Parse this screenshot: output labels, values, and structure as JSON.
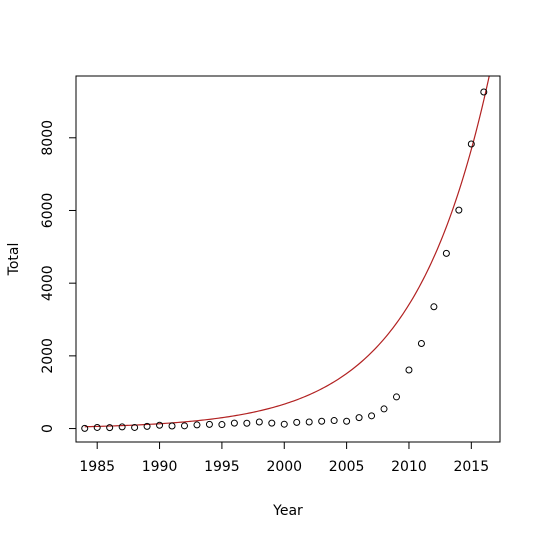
{
  "chart_data": {
    "type": "scatter",
    "xlabel": "Year",
    "ylabel": "Total",
    "xlim": [
      1983.3,
      2017.3
    ],
    "ylim": [
      -370,
      9700
    ],
    "x_ticks": [
      1985,
      1990,
      1995,
      2000,
      2005,
      2010,
      2015
    ],
    "y_ticks": [
      0,
      2000,
      4000,
      6000,
      8000
    ],
    "grid": false,
    "legend": "none",
    "points_color": "#000000",
    "fit_color": "#b22222",
    "series": [
      {
        "type": "scatter",
        "x": [
          1984,
          1985,
          1986,
          1987,
          1988,
          1989,
          1990,
          1991,
          1992,
          1993,
          1994,
          1995,
          1996,
          1997,
          1998,
          1999,
          2000,
          2001,
          2002,
          2003,
          2004,
          2005,
          2006,
          2007,
          2008,
          2009,
          2010,
          2011,
          2012,
          2013,
          2014,
          2015,
          2016
        ],
        "y": [
          5,
          30,
          25,
          45,
          30,
          60,
          90,
          70,
          75,
          100,
          115,
          110,
          150,
          145,
          180,
          150,
          120,
          170,
          180,
          200,
          220,
          200,
          300,
          350,
          540,
          870,
          1610,
          2340,
          3350,
          4820,
          6010,
          7830,
          9260
        ]
      },
      {
        "type": "line",
        "fit": "exponential",
        "x_range": [
          1984,
          2016.5
        ],
        "y": [
          50,
          9800
        ]
      }
    ]
  }
}
